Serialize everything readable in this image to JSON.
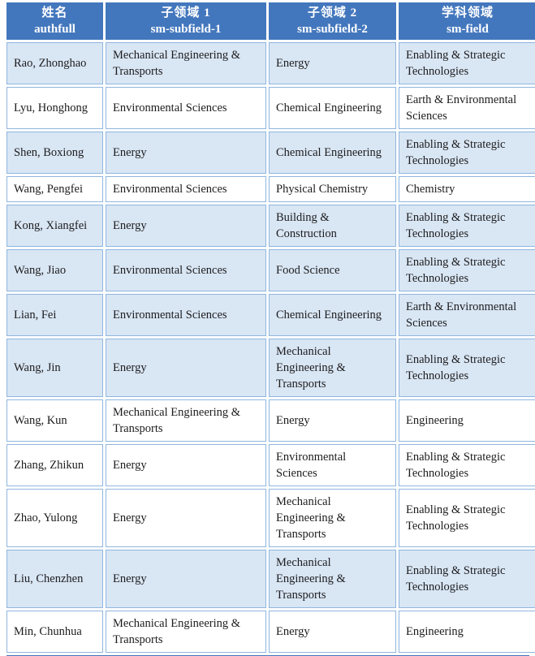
{
  "colors": {
    "header_bg": "#4377BD",
    "header_text": "#FFFFFF",
    "row_shaded_bg": "#D9E6F4",
    "row_plain_bg": "#FFFFFF",
    "border": "#8FB6DF",
    "body_text": "#1C1C1E"
  },
  "table": {
    "columns": [
      {
        "zh": "姓名",
        "en": "authfull"
      },
      {
        "zh": "子领域 1",
        "en": "sm-subfield-1"
      },
      {
        "zh": "子领域 2",
        "en": "sm-subfield-2"
      },
      {
        "zh": "学科领域",
        "en": "sm-field"
      }
    ],
    "rows": [
      {
        "shaded": true,
        "cells": [
          "Rao, Zhonghao",
          "Mechanical Engineering & Transports",
          "Energy",
          "Enabling & Strategic Technologies"
        ]
      },
      {
        "shaded": false,
        "cells": [
          "Lyu, Honghong",
          "Environmental Sciences",
          "Chemical Engineering",
          "Earth & Environmental Sciences"
        ]
      },
      {
        "shaded": true,
        "cells": [
          "Shen, Boxiong",
          "Energy",
          "Chemical Engineering",
          "Enabling & Strategic Technologies"
        ]
      },
      {
        "shaded": false,
        "cells": [
          "Wang, Pengfei",
          "Environmental Sciences",
          "Physical Chemistry",
          "Chemistry"
        ]
      },
      {
        "shaded": true,
        "cells": [
          "Kong, Xiangfei",
          "Energy",
          "Building & Construction",
          "Enabling & Strategic Technologies"
        ]
      },
      {
        "shaded": true,
        "cells": [
          "Wang, Jiao",
          "Environmental Sciences",
          "Food Science",
          "Enabling & Strategic Technologies"
        ]
      },
      {
        "shaded": true,
        "cells": [
          "Lian, Fei",
          "Environmental Sciences",
          "Chemical Engineering",
          "Earth & Environmental Sciences"
        ]
      },
      {
        "shaded": true,
        "cells": [
          "Wang, Jin",
          "Energy",
          "Mechanical Engineering & Transports",
          "Enabling & Strategic Technologies"
        ]
      },
      {
        "shaded": false,
        "cells": [
          "Wang, Kun",
          "Mechanical Engineering & Transports",
          "Energy",
          "Engineering"
        ]
      },
      {
        "shaded": false,
        "cells": [
          "Zhang, Zhikun",
          "Energy",
          "Environmental Sciences",
          "Enabling & Strategic Technologies"
        ]
      },
      {
        "shaded": false,
        "cells": [
          "Zhao, Yulong",
          "Energy",
          "Mechanical Engineering & Transports",
          "Enabling & Strategic Technologies"
        ]
      },
      {
        "shaded": true,
        "cells": [
          "Liu, Chenzhen",
          "Energy",
          "Mechanical Engineering & Transports",
          "Enabling & Strategic Technologies"
        ]
      },
      {
        "shaded": false,
        "cells": [
          "Min, Chunhua",
          "Mechanical Engineering & Transports",
          "Energy",
          "Engineering"
        ]
      }
    ]
  }
}
